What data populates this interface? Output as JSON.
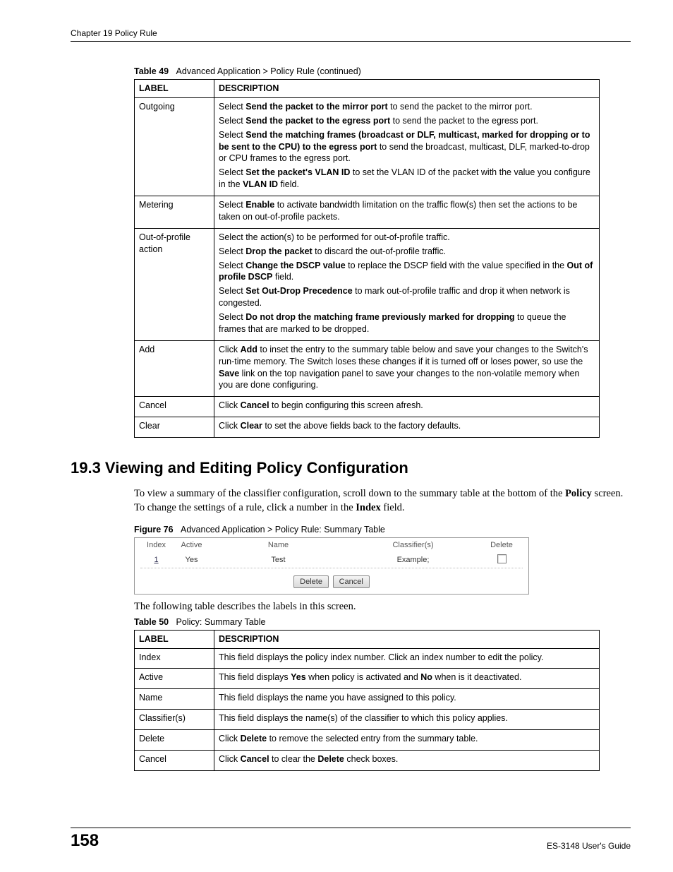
{
  "chapter_header": "Chapter 19 Policy Rule",
  "table49": {
    "caption_num": "Table 49",
    "caption_text": "Advanced Application > Policy Rule (continued)",
    "head_label": "LABEL",
    "head_desc": "DESCRIPTION",
    "rows": [
      {
        "label": "Outgoing",
        "desc": [
          {
            "t": "Select ",
            "b": "Send the packet to the mirror port",
            "a": " to send the packet to the mirror port."
          },
          {
            "t": "Select ",
            "b": "Send the packet to the egress port",
            "a": " to send the packet to the egress port."
          },
          {
            "t": "Select ",
            "b": "Send the matching frames (broadcast or DLF, multicast, marked for dropping or to be sent to the CPU) to the egress port",
            "a": " to send the broadcast, multicast, DLF, marked-to-drop or CPU frames to the egress port."
          },
          {
            "t": "Select ",
            "b": "Set the packet's VLAN ID",
            "a": " to set the VLAN ID of the packet with the value you configure in the ",
            "b2": "VLAN ID",
            "a2": " field."
          }
        ]
      },
      {
        "label": "Metering",
        "desc": [
          {
            "t": "Select ",
            "b": "Enable",
            "a": " to activate bandwidth limitation on the traffic flow(s) then set the actions to be taken on out-of-profile packets."
          }
        ]
      },
      {
        "label": "Out-of-profile action",
        "desc": [
          {
            "t": "Select the action(s) to be performed for out-of-profile traffic."
          },
          {
            "t": "Select ",
            "b": "Drop the packet",
            "a": " to discard the out-of-profile traffic."
          },
          {
            "t": "Select ",
            "b": "Change the DSCP value",
            "a": " to replace the DSCP field with the value specified in the ",
            "b2": "Out of profile DSCP",
            "a2": " field."
          },
          {
            "t": "Select ",
            "b": "Set Out-Drop Precedence",
            "a": " to mark out-of-profile traffic and drop it when network is congested."
          },
          {
            "t": "Select ",
            "b": "Do not drop the matching frame previously marked for dropping",
            "a": " to queue the frames that are marked to be dropped."
          }
        ]
      },
      {
        "label": "Add",
        "desc": [
          {
            "t": "Click ",
            "b": "Add",
            "a": " to inset the entry to the summary table below and save your changes to the Switch's run-time memory. The Switch loses these changes if it is turned off or loses power, so use the ",
            "b2": "Save",
            "a2": " link on the top navigation panel to save your changes to the non-volatile memory when you are done configuring."
          }
        ]
      },
      {
        "label": "Cancel",
        "desc": [
          {
            "t": "Click ",
            "b": "Cancel",
            "a": " to begin configuring this screen afresh."
          }
        ]
      },
      {
        "label": "Clear",
        "desc": [
          {
            "t": "Click ",
            "b": "Clear",
            "a": " to set the above fields back to the factory defaults."
          }
        ]
      }
    ]
  },
  "section_title": "19.3  Viewing and Editing Policy Configuration",
  "section_body_1": "To view a summary of the classifier configuration, scroll down to the summary table at the bottom of the ",
  "section_body_1b": "Policy",
  "section_body_1c": " screen. To change the settings of a rule, click a number in the ",
  "section_body_1d": "Index",
  "section_body_1e": " field.",
  "figure76": {
    "num": "Figure 76",
    "text": "Advanced Application > Policy Rule: Summary Table",
    "headers": {
      "index": "Index",
      "active": "Active",
      "name": "Name",
      "classifiers": "Classifier(s)",
      "delete": "Delete"
    },
    "row": {
      "index": "1",
      "active": "Yes",
      "name": "Test",
      "classifiers": "Example;"
    },
    "buttons": {
      "delete": "Delete",
      "cancel": "Cancel"
    }
  },
  "after_figure_text": "The following table describes the labels in this screen.",
  "table50": {
    "caption_num": "Table 50",
    "caption_text": "Policy: Summary Table",
    "head_label": "LABEL",
    "head_desc": "DESCRIPTION",
    "rows": [
      {
        "label": "Index",
        "desc": [
          {
            "t": "This field displays the policy index number. Click an index number to edit the policy."
          }
        ]
      },
      {
        "label": "Active",
        "desc": [
          {
            "t": "This field displays ",
            "b": "Yes",
            "a": " when policy is activated and ",
            "b2": "No",
            "a2": " when is it deactivated."
          }
        ]
      },
      {
        "label": "Name",
        "desc": [
          {
            "t": "This field displays the name you have assigned to this policy."
          }
        ]
      },
      {
        "label": "Classifier(s)",
        "desc": [
          {
            "t": "This field displays the name(s) of the classifier to which this policy applies."
          }
        ]
      },
      {
        "label": "Delete",
        "desc": [
          {
            "t": "Click ",
            "b": "Delete",
            "a": " to remove the selected entry from the summary table."
          }
        ]
      },
      {
        "label": "Cancel",
        "desc": [
          {
            "t": "Click ",
            "b": "Cancel",
            "a": " to clear the ",
            "b2": "Delete",
            "a2": " check boxes."
          }
        ]
      }
    ]
  },
  "footer": {
    "page_num": "158",
    "guide": "ES-3148 User's Guide"
  }
}
